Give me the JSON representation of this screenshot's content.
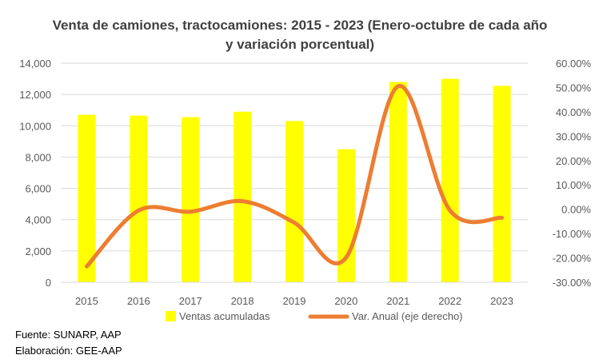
{
  "chart_data": {
    "type": "bar+line",
    "title": "Venta de camiones, tractocamiones: 2015 - 2023 (Enero-octubre de cada año y variación porcentual)",
    "categories": [
      "2015",
      "2016",
      "2017",
      "2018",
      "2019",
      "2020",
      "2021",
      "2022",
      "2023"
    ],
    "series": [
      {
        "name": "Ventas acumuladas",
        "type": "bar",
        "axis": "left",
        "color": "#FFFF00",
        "values": [
          10700,
          10650,
          10550,
          10900,
          10300,
          8500,
          12800,
          13000,
          12550
        ]
      },
      {
        "name": "Var. Anual (eje derecho)",
        "type": "line",
        "axis": "right",
        "color": "#ED7D31",
        "values": [
          -23.5,
          -0.5,
          -1.0,
          3.3,
          -5.5,
          -19.8,
          50.5,
          -0.5,
          -3.5
        ]
      }
    ],
    "y_left": {
      "ylim": [
        0,
        14000
      ],
      "ticks": [
        "0",
        "2,000",
        "4,000",
        "6,000",
        "8,000",
        "10,000",
        "12,000",
        "14,000"
      ]
    },
    "y_right": {
      "ylim": [
        -30,
        60
      ],
      "ticks": [
        "-30.00%",
        "-20.00%",
        "-10.00%",
        "0.00%",
        "10.00%",
        "20.00%",
        "30.00%",
        "40.00%",
        "50.00%",
        "60.00%"
      ]
    },
    "grid": true,
    "legend": "bottom"
  },
  "footer": {
    "source": "Fuente: SUNARP, AAP",
    "credit": "Elaboración: GEE-AAP"
  }
}
